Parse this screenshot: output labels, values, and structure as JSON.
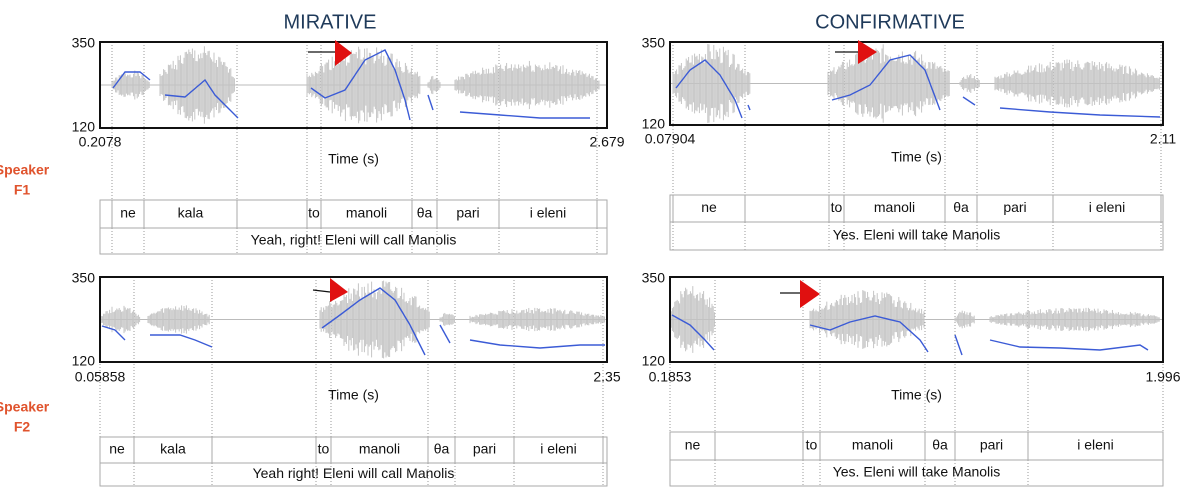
{
  "column_titles": [
    "MIRATIVE",
    "CONFIRMATIVE"
  ],
  "rows": [
    {
      "speaker_label": [
        "Speaker",
        "F1"
      ]
    },
    {
      "speaker_label": [
        "Speaker",
        "F2"
      ]
    }
  ],
  "panels": [
    {
      "y_max": 350,
      "y_min": 120,
      "time_start": 0.2078,
      "time_end": 2.679,
      "x_label": "Time (s)",
      "words": [
        "ne",
        "kala",
        "to",
        "manoli",
        "θa",
        "pari",
        "i eleni"
      ],
      "sentence": "Yeah, right! Eleni will call Manolis"
    },
    {
      "y_max": 350,
      "y_min": 120,
      "time_start": 0.07904,
      "time_end": 2.11,
      "x_label": "Time (s)",
      "words": [
        "ne",
        "to",
        "manoli",
        "θa",
        "pari",
        "i eleni"
      ],
      "sentence": "Yes. Eleni will take Manolis"
    },
    {
      "y_max": 350,
      "y_min": 120,
      "time_start": 0.05858,
      "time_end": 2.35,
      "x_label": "Time (s)",
      "words": [
        "ne",
        "kala",
        "to",
        "manoli",
        "θa",
        "pari",
        "i eleni"
      ],
      "sentence": "Yeah right! Eleni will call Manolis"
    },
    {
      "y_max": 350,
      "y_min": 120,
      "time_start": 0.1853,
      "time_end": 1.996,
      "x_label": "Time (s)",
      "words": [
        "ne",
        "to",
        "manoli",
        "θa",
        "pari",
        "i eleni"
      ],
      "sentence": "Yes. Eleni will take Manolis"
    }
  ]
}
